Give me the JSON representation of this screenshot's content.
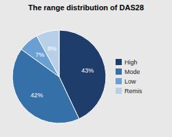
{
  "chart_data": {
    "type": "pie",
    "title": "The range distribution of DAS28",
    "categories": [
      "High",
      "Mode",
      "Low",
      "Remis"
    ],
    "values": [
      43,
      42,
      7,
      8
    ],
    "value_labels": [
      "43%",
      "42%",
      "7%",
      "8%"
    ],
    "colors": [
      "#1f3d6b",
      "#3570a8",
      "#6a9fd4",
      "#b8cfe8"
    ],
    "data_labels": true,
    "legend": "right"
  }
}
